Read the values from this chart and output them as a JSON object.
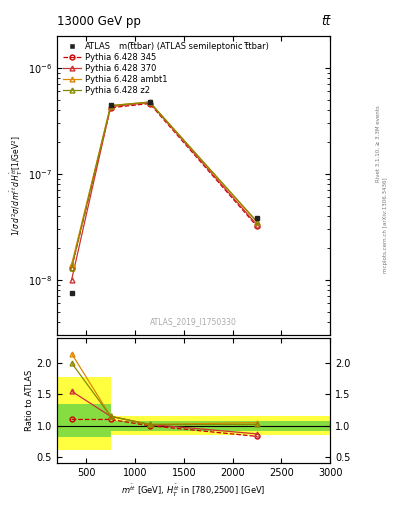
{
  "title_top": "13000 GeV pp",
  "title_top_right": "tt̅",
  "plot_title": "m(t̅tbar) (ATLAS semileptonic t̅tbar)",
  "watermark": "ATLAS_2019_I1750330",
  "right_label_top": "Rivet 3.1.10, ≥ 3.3M events",
  "right_label_bot": "mcplots.cern.ch [arXiv:1306.3436]",
  "colors": {
    "atlas": "#222222",
    "p345": "#cc0000",
    "p370": "#cc3333",
    "pambt1": "#dd8800",
    "pz2": "#888800"
  },
  "data_points": {
    "x": [
      350,
      750,
      1150,
      2250
    ],
    "atlas": [
      7.5e-09,
      4.5e-07,
      4.8e-07,
      3.8e-08
    ],
    "p345": [
      1.3e-08,
      4.2e-07,
      4.6e-07,
      3.2e-08
    ],
    "p370": [
      1e-08,
      4.3e-07,
      4.7e-07,
      3.3e-08
    ],
    "pambt1": [
      1.4e-08,
      4.4e-07,
      4.75e-07,
      3.5e-08
    ],
    "pz2": [
      1.3e-08,
      4.4e-07,
      4.75e-07,
      3.55e-08
    ]
  },
  "ratio_points": {
    "x": [
      350,
      750,
      1150,
      2250
    ],
    "p345": [
      1.1,
      1.1,
      1.0,
      0.83
    ],
    "p370": [
      1.55,
      1.15,
      1.02,
      0.87
    ],
    "pambt1": [
      2.15,
      1.15,
      1.02,
      1.05
    ],
    "pz2": [
      2.0,
      1.15,
      1.02,
      1.02
    ]
  },
  "yellow_x": [
    200,
    750,
    750,
    3000
  ],
  "yellow_lo": [
    0.62,
    0.62,
    0.85,
    0.85
  ],
  "yellow_hi": [
    1.78,
    1.78,
    1.15,
    1.15
  ],
  "green_x": [
    200,
    750,
    750,
    3000
  ],
  "green_lo": [
    0.82,
    0.82,
    0.92,
    0.92
  ],
  "green_hi": [
    1.35,
    1.35,
    1.08,
    1.08
  ],
  "xlim": [
    200,
    3000
  ],
  "ylim_main": [
    3e-09,
    2e-06
  ],
  "ylim_ratio": [
    0.4,
    2.4
  ],
  "xticks": [
    500,
    1000,
    1500,
    2000,
    2500,
    3000
  ],
  "yticks_ratio": [
    0.5,
    1.0,
    1.5,
    2.0
  ]
}
